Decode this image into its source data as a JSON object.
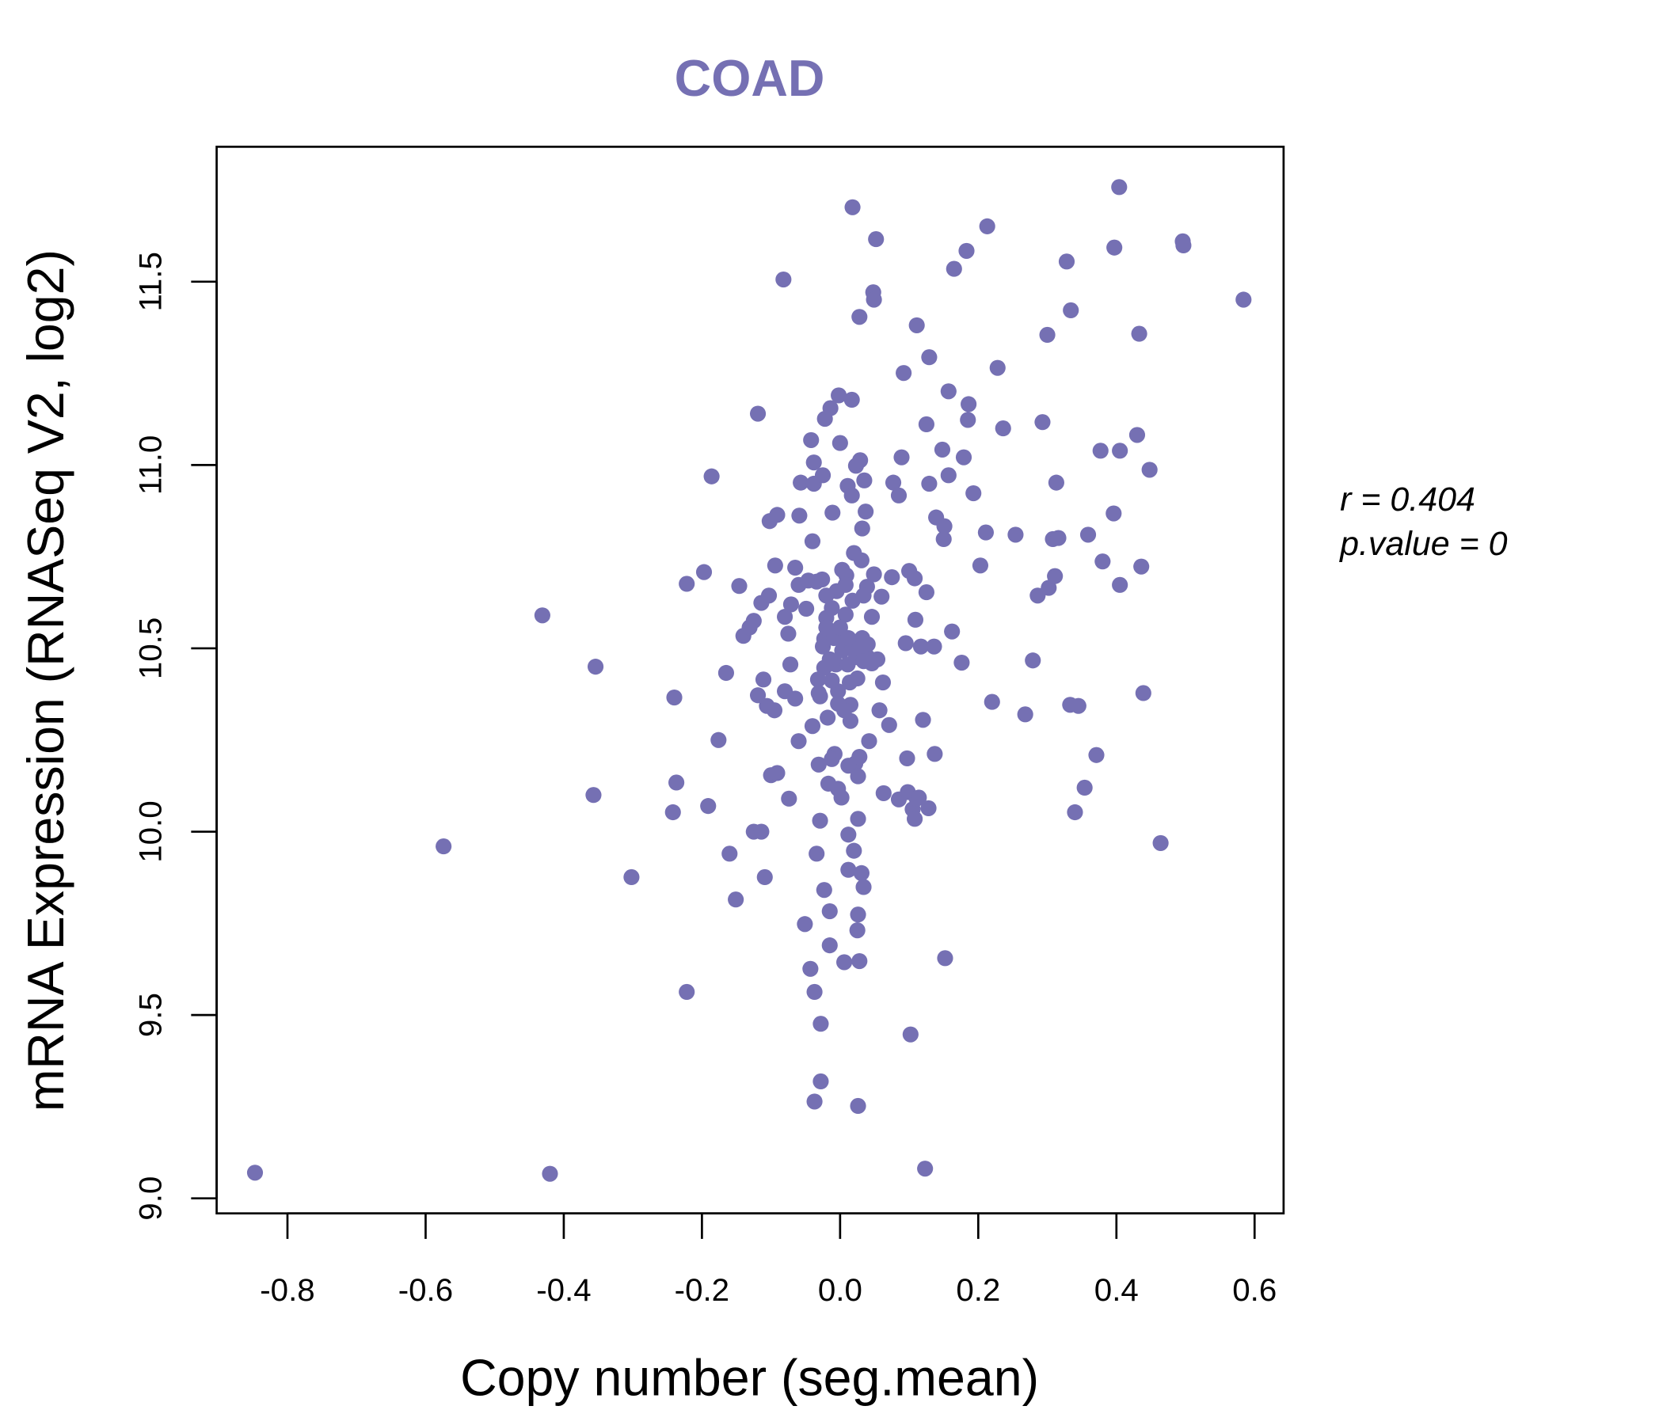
{
  "chart_data": {
    "type": "scatter",
    "title": "COAD",
    "xlabel": "Copy number (seg.mean)",
    "ylabel": "mRNA Expression (RNASeq V2, log2)",
    "xlim": [
      -0.9025,
      0.642
    ],
    "ylim": [
      8.959,
      11.868
    ],
    "xticks": [
      -0.8,
      -0.6,
      -0.4,
      -0.2,
      0.0,
      0.2,
      0.4,
      0.6
    ],
    "xtick_labels": [
      "-0.8",
      "-0.6",
      "-0.4",
      "-0.2",
      "0.0",
      "0.2",
      "0.4",
      "0.6"
    ],
    "yticks": [
      9.0,
      9.5,
      10.0,
      10.5,
      11.0,
      11.5
    ],
    "ytick_labels": [
      "9.0",
      "9.5",
      "10.0",
      "10.5",
      "11.0",
      "11.5"
    ],
    "grid": false,
    "point_color": "#7570b3",
    "title_color": "#7570b3",
    "stats": {
      "r_text": "r = 0.404",
      "p_text": "p.value = 0"
    },
    "points": [
      [
        -0.847,
        9.07
      ],
      [
        -0.42,
        9.067
      ],
      [
        -0.574,
        9.96
      ],
      [
        -0.431,
        10.59
      ],
      [
        -0.354,
        10.45
      ],
      [
        -0.357,
        10.1
      ],
      [
        -0.302,
        9.876
      ],
      [
        -0.222,
        9.563
      ],
      [
        -0.222,
        10.676
      ],
      [
        -0.24,
        10.366
      ],
      [
        -0.237,
        10.134
      ],
      [
        -0.242,
        10.053
      ],
      [
        -0.197,
        10.708
      ],
      [
        -0.186,
        10.969
      ],
      [
        -0.191,
        10.07
      ],
      [
        -0.176,
        10.25
      ],
      [
        -0.165,
        10.433
      ],
      [
        -0.16,
        9.94
      ],
      [
        -0.151,
        9.815
      ],
      [
        -0.146,
        10.67
      ],
      [
        -0.14,
        10.534
      ],
      [
        -0.131,
        10.557
      ],
      [
        -0.125,
        10.575
      ],
      [
        -0.125,
        10.0
      ],
      [
        -0.119,
        11.14
      ],
      [
        -0.119,
        10.372
      ],
      [
        -0.114,
        10.0
      ],
      [
        -0.114,
        10.624
      ],
      [
        -0.111,
        10.415
      ],
      [
        -0.109,
        9.876
      ],
      [
        -0.106,
        10.343
      ],
      [
        -0.103,
        10.644
      ],
      [
        -0.102,
        10.847
      ],
      [
        -0.1,
        10.154
      ],
      [
        -0.095,
        10.331
      ],
      [
        -0.094,
        10.726
      ],
      [
        -0.091,
        10.864
      ],
      [
        -0.091,
        10.16
      ],
      [
        -0.082,
        11.506
      ],
      [
        -0.08,
        10.586
      ],
      [
        -0.08,
        10.383
      ],
      [
        -0.075,
        10.54
      ],
      [
        -0.074,
        10.09
      ],
      [
        -0.072,
        10.456
      ],
      [
        -0.071,
        10.62
      ],
      [
        -0.065,
        10.72
      ],
      [
        -0.065,
        10.363
      ],
      [
        -0.06,
        10.673
      ],
      [
        -0.06,
        10.247
      ],
      [
        -0.059,
        10.862
      ],
      [
        -0.057,
        10.952
      ],
      [
        -0.051,
        9.748
      ],
      [
        -0.049,
        10.608
      ],
      [
        -0.046,
        10.685
      ],
      [
        -0.043,
        9.626
      ],
      [
        -0.042,
        11.068
      ],
      [
        -0.04,
        10.288
      ],
      [
        -0.04,
        10.792
      ],
      [
        -0.038,
        10.949
      ],
      [
        -0.038,
        11.007
      ],
      [
        -0.037,
        9.563
      ],
      [
        -0.037,
        9.264
      ],
      [
        -0.034,
        9.94
      ],
      [
        -0.034,
        10.682
      ],
      [
        -0.032,
        10.415
      ],
      [
        -0.031,
        10.183
      ],
      [
        -0.031,
        10.378
      ],
      [
        -0.029,
        10.03
      ],
      [
        -0.028,
        9.476
      ],
      [
        -0.028,
        9.319
      ],
      [
        -0.026,
        10.688
      ],
      [
        -0.025,
        10.972
      ],
      [
        -0.023,
        9.841
      ],
      [
        -0.023,
        10.447
      ],
      [
        -0.023,
        10.526
      ],
      [
        -0.022,
        11.126
      ],
      [
        -0.02,
        10.583
      ],
      [
        -0.018,
        10.311
      ],
      [
        -0.017,
        10.131
      ],
      [
        -0.015,
        9.783
      ],
      [
        -0.015,
        9.69
      ],
      [
        -0.014,
        11.155
      ],
      [
        -0.012,
        10.61
      ],
      [
        -0.011,
        10.87
      ],
      [
        -0.008,
        10.212
      ],
      [
        -0.006,
        10.456
      ],
      [
        -0.005,
        10.656
      ],
      [
        -0.003,
        10.383
      ],
      [
        -0.002,
        11.19
      ],
      [
        0.0,
        11.06
      ],
      [
        0.002,
        10.093
      ],
      [
        0.003,
        10.714
      ],
      [
        0.005,
        10.517
      ],
      [
        0.006,
        9.644
      ],
      [
        0.008,
        10.592
      ],
      [
        0.009,
        10.699
      ],
      [
        0.011,
        10.943
      ],
      [
        0.012,
        9.992
      ],
      [
        0.012,
        9.896
      ],
      [
        0.014,
        10.407
      ],
      [
        0.015,
        10.346
      ],
      [
        0.017,
        11.178
      ],
      [
        0.017,
        10.917
      ],
      [
        0.018,
        11.703
      ],
      [
        0.02,
        10.76
      ],
      [
        0.02,
        9.948
      ],
      [
        0.022,
        10.186
      ],
      [
        0.023,
        10.998
      ],
      [
        0.025,
        9.731
      ],
      [
        0.026,
        9.774
      ],
      [
        0.026,
        9.252
      ],
      [
        0.026,
        10.035
      ],
      [
        0.028,
        9.647
      ],
      [
        0.028,
        11.404
      ],
      [
        0.029,
        11.013
      ],
      [
        0.031,
        10.74
      ],
      [
        0.031,
        9.887
      ],
      [
        0.032,
        10.827
      ],
      [
        0.032,
        10.528
      ],
      [
        0.034,
        9.849
      ],
      [
        0.035,
        10.958
      ],
      [
        0.037,
        10.873
      ],
      [
        0.039,
        10.668
      ],
      [
        0.04,
        10.476
      ],
      [
        0.042,
        10.247
      ],
      [
        0.046,
        10.586
      ],
      [
        0.048,
        11.471
      ],
      [
        0.049,
        11.451
      ],
      [
        0.049,
        10.702
      ],
      [
        0.052,
        11.616
      ],
      [
        0.054,
        10.47
      ],
      [
        0.057,
        10.331
      ],
      [
        0.06,
        10.641
      ],
      [
        0.062,
        10.407
      ],
      [
        0.063,
        10.105
      ],
      [
        0.071,
        10.291
      ],
      [
        0.075,
        10.694
      ],
      [
        0.077,
        10.952
      ],
      [
        0.085,
        10.917
      ],
      [
        0.085,
        10.088
      ],
      [
        0.089,
        11.021
      ],
      [
        0.092,
        11.251
      ],
      [
        0.095,
        10.514
      ],
      [
        0.097,
        10.2
      ],
      [
        0.098,
        10.108
      ],
      [
        0.1,
        10.711
      ],
      [
        0.102,
        9.447
      ],
      [
        0.105,
        10.061
      ],
      [
        0.108,
        10.035
      ],
      [
        0.108,
        10.691
      ],
      [
        0.109,
        10.578
      ],
      [
        0.111,
        11.381
      ],
      [
        0.111,
        10.09
      ],
      [
        0.114,
        10.093
      ],
      [
        0.117,
        10.505
      ],
      [
        0.12,
        10.305
      ],
      [
        0.123,
        9.081
      ],
      [
        0.125,
        11.111
      ],
      [
        0.125,
        10.653
      ],
      [
        0.128,
        10.064
      ],
      [
        0.129,
        11.294
      ],
      [
        0.129,
        10.949
      ],
      [
        0.136,
        10.505
      ],
      [
        0.137,
        10.212
      ],
      [
        0.139,
        10.857
      ],
      [
        0.148,
        11.042
      ],
      [
        0.15,
        10.798
      ],
      [
        0.151,
        10.833
      ],
      [
        0.152,
        9.655
      ],
      [
        0.157,
        11.201
      ],
      [
        0.157,
        10.972
      ],
      [
        0.162,
        10.546
      ],
      [
        0.165,
        11.535
      ],
      [
        0.176,
        10.461
      ],
      [
        0.179,
        11.021
      ],
      [
        0.183,
        11.584
      ],
      [
        0.185,
        11.123
      ],
      [
        0.186,
        11.166
      ],
      [
        0.193,
        10.923
      ],
      [
        0.203,
        10.726
      ],
      [
        0.211,
        10.816
      ],
      [
        0.213,
        11.651
      ],
      [
        0.22,
        10.354
      ],
      [
        0.228,
        11.265
      ],
      [
        0.236,
        11.1
      ],
      [
        0.254,
        10.81
      ],
      [
        0.268,
        10.32
      ],
      [
        0.279,
        10.467
      ],
      [
        0.286,
        10.644
      ],
      [
        0.293,
        11.117
      ],
      [
        0.3,
        11.355
      ],
      [
        0.302,
        10.665
      ],
      [
        0.308,
        10.798
      ],
      [
        0.311,
        10.697
      ],
      [
        0.313,
        10.952
      ],
      [
        0.316,
        10.801
      ],
      [
        0.328,
        11.555
      ],
      [
        0.333,
        10.346
      ],
      [
        0.334,
        11.422
      ],
      [
        0.34,
        10.053
      ],
      [
        0.345,
        10.343
      ],
      [
        0.359,
        10.81
      ],
      [
        0.354,
        10.12
      ],
      [
        0.371,
        10.209
      ],
      [
        0.377,
        11.039
      ],
      [
        0.38,
        10.737
      ],
      [
        0.396,
        10.868
      ],
      [
        0.397,
        11.593
      ],
      [
        0.404,
        11.758
      ],
      [
        0.405,
        11.039
      ],
      [
        0.405,
        10.673
      ],
      [
        0.43,
        11.082
      ],
      [
        0.433,
        11.358
      ],
      [
        0.436,
        10.723
      ],
      [
        0.439,
        10.378
      ],
      [
        0.448,
        10.987
      ],
      [
        0.464,
        9.969
      ],
      [
        0.496,
        11.61
      ],
      [
        0.497,
        11.599
      ],
      [
        0.584,
        11.451
      ],
      [
        -0.025,
        10.505
      ],
      [
        -0.02,
        10.557
      ],
      [
        -0.015,
        10.47
      ],
      [
        -0.012,
        10.412
      ],
      [
        -0.009,
        10.528
      ],
      [
        0.003,
        10.494
      ],
      [
        0.011,
        10.456
      ],
      [
        0.018,
        10.508
      ],
      [
        0.023,
        10.476
      ],
      [
        0.028,
        10.499
      ],
      [
        0.034,
        10.465
      ],
      [
        0.04,
        10.511
      ],
      [
        0.046,
        10.459
      ],
      [
        0.006,
        10.331
      ],
      [
        0.012,
        10.18
      ],
      [
        0.028,
        10.204
      ],
      [
        -0.012,
        10.198
      ],
      [
        -0.003,
        10.117
      ],
      [
        0.026,
        10.151
      ],
      [
        0.008,
        10.673
      ],
      [
        0.018,
        10.63
      ],
      [
        0.034,
        10.644
      ],
      [
        0.0,
        10.557
      ],
      [
        -0.02,
        10.644
      ],
      [
        -0.029,
        10.369
      ],
      [
        -0.003,
        10.349
      ],
      [
        0.015,
        10.302
      ],
      [
        0.025,
        10.418
      ],
      [
        0.012,
        10.528
      ]
    ]
  }
}
